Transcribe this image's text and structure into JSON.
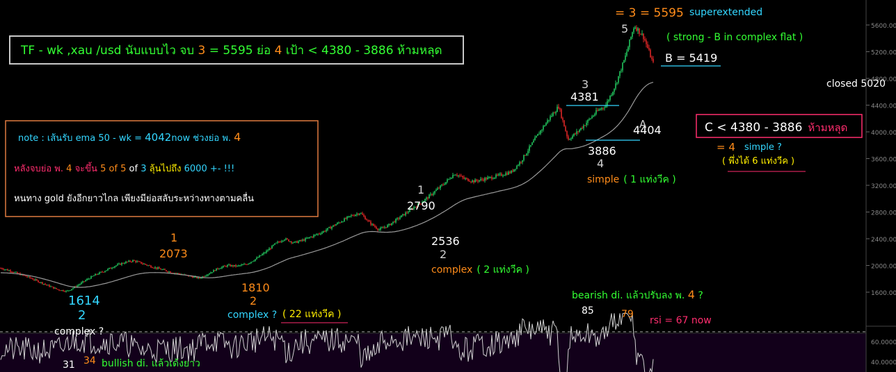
{
  "title": {
    "pre": "TF - wk ,xau /usd นับแบบไว จบ ",
    "n3": "3",
    "mid": " = 5595 ย่อ ",
    "n4": "4",
    "post": " เป้า < 4380 - 3886 ห้ามหลุด"
  },
  "note": {
    "line1_label": "note : เส้นรับ ema 50 - wk = ",
    "line1_value": "4042",
    "line1_tail": "now ช่วงย่อ พ. ",
    "line1_wave": "4",
    "line2_a": "หลังจบย่อ พ. ",
    "line2_b": "4",
    "line2_c": " จะขึ้น ",
    "line2_d": "5 of 5",
    "line2_e": "  of  ",
    "line2_f": "3",
    "line2_g": " ลุ้นไปถึง ",
    "line2_h": "6000 +- !!!",
    "line3": "หนทาง gold ยังอีกยาวไกล เพียงมีย่อสลับระหว่างทางตามคลื่น"
  },
  "top_label": {
    "a": "= 3 = 5595",
    "b": "superextended",
    "c": "( strong - B in complex  flat )"
  },
  "b_label": "B = 5419",
  "closed_label": "closed  5020",
  "c_box": {
    "a": "C < 4380 - 3886",
    "b": "ห้ามหลุด"
  },
  "eq4": {
    "a": "= 4",
    "b": "simple ?",
    "c": "( พึ่งได้ 6 แท่งวีค )"
  },
  "waves": {
    "w1614": "1614",
    "w1614_n": "2",
    "w1614_c": "complex ?",
    "w2073": "2073",
    "w2073_n": "1",
    "w1810": "1810",
    "w1810_n": "2",
    "w1810_c1": "complex ?",
    "w1810_c2": "( 22 แท่งวีค )",
    "w2790": "2790",
    "w2790_n": "1",
    "w2536": "2536",
    "w2536_n": "2",
    "w2536_c1": "complex",
    "w2536_c2": "( 2 แท่งวีค )",
    "w4381": "4381",
    "w4381_n": "3",
    "w3886": "3886",
    "w3886_n": "4",
    "w3886_c1": "simple",
    "w3886_c2": "( 1 แท่งวีค )",
    "w4404": "4404",
    "w4404_n": "A",
    "w5": "5"
  },
  "rsi": {
    "bear_a": "bearish di. แล้วปรับลง พ. ",
    "bear_b": "4",
    "bear_c": " ?",
    "v85": "85",
    "v79": "79",
    "now": "rsi = 67 now",
    "v31": "31",
    "v34": "34",
    "bull": "bullish di. แล้วเด้งยาว"
  },
  "colors": {
    "up": "#22c55e",
    "down": "#dc2626",
    "ema": "#a0a0a0",
    "orange": "#ff8c1a",
    "cyan": "#33d6ff",
    "green": "#33ff33",
    "yellow": "#ffee00",
    "pink": "#ff2d6e",
    "white": "#ffffff"
  },
  "chart_data": {
    "type": "line",
    "title": "",
    "xlabel": "",
    "ylabel": "",
    "ylim": [
      1300,
      6000
    ],
    "y_ticks": [
      "5600.00",
      "5200.00",
      "4800.00",
      "4400.00",
      "4000.00",
      "3600.00",
      "3200.00",
      "2800.00",
      "2400.00",
      "2000.00",
      "1600.00"
    ],
    "rsi_ticks": [
      "60.0000",
      "40.0000"
    ],
    "series": [
      {
        "values": [
          1960,
          1920,
          1870,
          1820,
          1760,
          1700,
          1640,
          1614,
          1690,
          1780,
          1860,
          1920,
          1990,
          2040,
          2073,
          2030,
          1980,
          1940,
          1900,
          1870,
          1840,
          1810,
          1880,
          1960,
          2000,
          1990,
          2020,
          2100,
          2200,
          2320,
          2400,
          2340,
          2380,
          2440,
          2500,
          2580,
          2660,
          2740,
          2790,
          2640,
          2536,
          2600,
          2700,
          2800,
          2900,
          3000,
          3120,
          3240,
          3380,
          3300,
          3260,
          3290,
          3320,
          3360,
          3400,
          3560,
          3780,
          4000,
          4200,
          4381,
          3886,
          4000,
          4150,
          4300,
          4404,
          4700,
          5100,
          5595,
          5419,
          5020
        ]
      }
    ]
  }
}
